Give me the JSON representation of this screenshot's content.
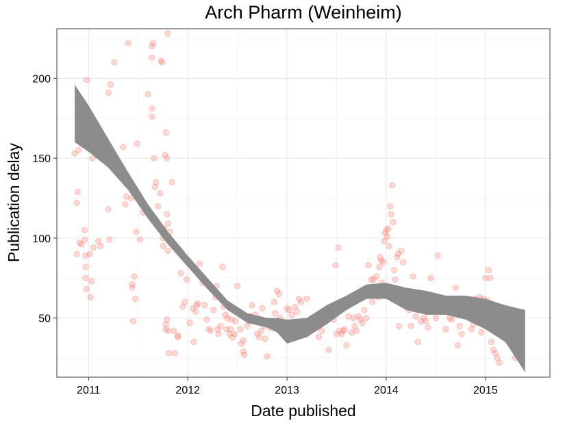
{
  "chart_data": {
    "type": "scatter",
    "title": "Arch Pharm (Weinheim)",
    "xlabel": "Date published",
    "ylabel": "Publication delay",
    "xlim": [
      2010.68,
      2015.65
    ],
    "ylim": [
      13,
      231
    ],
    "x_ticks": [
      2011,
      2012,
      2013,
      2014,
      2015
    ],
    "x_tick_labels": [
      "2011",
      "2012",
      "2013",
      "2014",
      "2015"
    ],
    "y_ticks": [
      50,
      100,
      150,
      200
    ],
    "y_tick_labels": [
      "50",
      "100",
      "150",
      "200"
    ],
    "grid": true,
    "point_color": "#f8766d",
    "band_color": "#8c8c8c",
    "points": [
      [
        2010.86,
        153
      ],
      [
        2010.88,
        122
      ],
      [
        2010.89,
        129
      ],
      [
        2010.9,
        155
      ],
      [
        2010.91,
        97
      ],
      [
        2010.93,
        96
      ],
      [
        2010.88,
        90
      ],
      [
        2010.96,
        99
      ],
      [
        2010.97,
        89
      ],
      [
        2010.97,
        75
      ],
      [
        2010.98,
        199
      ],
      [
        2010.99,
        168
      ],
      [
        2010.96,
        105
      ],
      [
        2010.97,
        82
      ],
      [
        2010.98,
        68
      ],
      [
        2011.01,
        90
      ],
      [
        2011.03,
        157
      ],
      [
        2011.04,
        150
      ],
      [
        2011.02,
        63
      ],
      [
        2011.03,
        73
      ],
      [
        2011.05,
        94
      ],
      [
        2011.1,
        98
      ],
      [
        2011.11,
        165
      ],
      [
        2011.12,
        95
      ],
      [
        2011.15,
        162
      ],
      [
        2011.2,
        191
      ],
      [
        2011.22,
        196
      ],
      [
        2011.21,
        99
      ],
      [
        2011.2,
        118
      ],
      [
        2011.26,
        210
      ],
      [
        2011.35,
        157
      ],
      [
        2011.37,
        121
      ],
      [
        2011.38,
        126
      ],
      [
        2011.4,
        222
      ],
      [
        2011.38,
        134
      ],
      [
        2011.43,
        125
      ],
      [
        2011.44,
        71
      ],
      [
        2011.44,
        69
      ],
      [
        2011.45,
        48
      ],
      [
        2011.46,
        76
      ],
      [
        2011.47,
        62
      ],
      [
        2011.48,
        104
      ],
      [
        2011.49,
        159
      ],
      [
        2011.52,
        99
      ],
      [
        2011.55,
        116
      ],
      [
        2011.6,
        190
      ],
      [
        2011.64,
        220
      ],
      [
        2011.65,
        222
      ],
      [
        2011.64,
        213
      ],
      [
        2011.64,
        181
      ],
      [
        2011.64,
        176
      ],
      [
        2011.66,
        150
      ],
      [
        2011.67,
        132
      ],
      [
        2011.68,
        135
      ],
      [
        2011.66,
        112
      ],
      [
        2011.7,
        120
      ],
      [
        2011.72,
        128
      ],
      [
        2011.73,
        211
      ],
      [
        2011.74,
        210
      ],
      [
        2011.76,
        106
      ],
      [
        2011.75,
        100
      ],
      [
        2011.75,
        95
      ],
      [
        2011.77,
        152
      ],
      [
        2011.79,
        150
      ],
      [
        2011.78,
        166
      ],
      [
        2011.8,
        228
      ],
      [
        2011.79,
        115
      ],
      [
        2011.8,
        109
      ],
      [
        2011.8,
        92
      ],
      [
        2011.82,
        104
      ],
      [
        2011.78,
        46
      ],
      [
        2011.79,
        49
      ],
      [
        2011.78,
        43
      ],
      [
        2011.8,
        42
      ],
      [
        2011.81,
        28
      ],
      [
        2011.84,
        135
      ],
      [
        2011.87,
        28
      ],
      [
        2011.86,
        42
      ],
      [
        2011.9,
        39
      ],
      [
        2011.9,
        38
      ],
      [
        2011.93,
        78
      ],
      [
        2011.95,
        57
      ],
      [
        2011.97,
        60
      ],
      [
        2011.99,
        74
      ],
      [
        2012.02,
        47
      ],
      [
        2012.05,
        56
      ],
      [
        2012.06,
        35
      ],
      [
        2012.08,
        54
      ],
      [
        2012.09,
        58
      ],
      [
        2012.1,
        59
      ],
      [
        2012.12,
        84
      ],
      [
        2012.15,
        72
      ],
      [
        2012.17,
        58
      ],
      [
        2012.19,
        49
      ],
      [
        2012.21,
        43
      ],
      [
        2012.23,
        42
      ],
      [
        2012.26,
        55
      ],
      [
        2012.28,
        63
      ],
      [
        2012.29,
        70
      ],
      [
        2012.3,
        43
      ],
      [
        2012.31,
        40
      ],
      [
        2012.33,
        45
      ],
      [
        2012.35,
        82
      ],
      [
        2012.36,
        57
      ],
      [
        2012.38,
        52
      ],
      [
        2012.39,
        43
      ],
      [
        2012.4,
        50
      ],
      [
        2012.42,
        40
      ],
      [
        2012.43,
        43
      ],
      [
        2012.44,
        49
      ],
      [
        2012.45,
        38
      ],
      [
        2012.47,
        40
      ],
      [
        2012.48,
        48
      ],
      [
        2012.5,
        70
      ],
      [
        2012.52,
        54
      ],
      [
        2012.53,
        43
      ],
      [
        2012.54,
        34
      ],
      [
        2012.56,
        36
      ],
      [
        2012.56,
        29
      ],
      [
        2012.57,
        27
      ],
      [
        2012.6,
        45
      ],
      [
        2012.61,
        50
      ],
      [
        2012.62,
        48
      ],
      [
        2012.63,
        51
      ],
      [
        2012.65,
        58
      ],
      [
        2012.67,
        49
      ],
      [
        2012.68,
        52
      ],
      [
        2012.7,
        40
      ],
      [
        2012.72,
        38
      ],
      [
        2012.74,
        42
      ],
      [
        2012.75,
        56
      ],
      [
        2012.77,
        45
      ],
      [
        2012.78,
        37
      ],
      [
        2012.8,
        26
      ],
      [
        2012.83,
        44
      ],
      [
        2012.85,
        48
      ],
      [
        2012.87,
        60
      ],
      [
        2012.88,
        53
      ],
      [
        2012.9,
        67
      ],
      [
        2012.92,
        65
      ],
      [
        2012.93,
        50
      ],
      [
        2012.95,
        41
      ],
      [
        2012.98,
        43
      ],
      [
        2013.0,
        56
      ],
      [
        2013.02,
        55
      ],
      [
        2013.05,
        52
      ],
      [
        2013.08,
        57
      ],
      [
        2013.1,
        54
      ],
      [
        2013.12,
        62
      ],
      [
        2013.14,
        60
      ],
      [
        2013.16,
        41
      ],
      [
        2013.18,
        46
      ],
      [
        2013.2,
        62
      ],
      [
        2013.23,
        44
      ],
      [
        2013.25,
        50
      ],
      [
        2013.27,
        46
      ],
      [
        2013.3,
        45
      ],
      [
        2013.32,
        38
      ],
      [
        2013.35,
        42
      ],
      [
        2013.38,
        48
      ],
      [
        2013.4,
        55
      ],
      [
        2013.42,
        30
      ],
      [
        2013.45,
        53
      ],
      [
        2013.47,
        49
      ],
      [
        2013.49,
        83
      ],
      [
        2013.5,
        40
      ],
      [
        2013.52,
        94
      ],
      [
        2013.53,
        42
      ],
      [
        2013.55,
        40
      ],
      [
        2013.57,
        42
      ],
      [
        2013.58,
        43
      ],
      [
        2013.6,
        33
      ],
      [
        2013.62,
        51
      ],
      [
        2013.65,
        41
      ],
      [
        2013.67,
        50
      ],
      [
        2013.68,
        45
      ],
      [
        2013.7,
        42
      ],
      [
        2013.72,
        51
      ],
      [
        2013.74,
        49
      ],
      [
        2013.76,
        47
      ],
      [
        2013.78,
        55
      ],
      [
        2013.8,
        50
      ],
      [
        2013.82,
        83
      ],
      [
        2013.83,
        65
      ],
      [
        2013.85,
        74
      ],
      [
        2013.86,
        60
      ],
      [
        2013.87,
        74
      ],
      [
        2013.88,
        69
      ],
      [
        2013.9,
        76
      ],
      [
        2013.91,
        67
      ],
      [
        2013.92,
        63
      ],
      [
        2013.93,
        82
      ],
      [
        2013.94,
        88
      ],
      [
        2013.95,
        86
      ],
      [
        2013.96,
        72
      ],
      [
        2013.97,
        85
      ],
      [
        2013.98,
        98
      ],
      [
        2013.99,
        103
      ],
      [
        2014.0,
        105
      ],
      [
        2014.01,
        101
      ],
      [
        2014.02,
        106
      ],
      [
        2014.03,
        95
      ],
      [
        2014.04,
        120
      ],
      [
        2014.05,
        115
      ],
      [
        2014.06,
        133
      ],
      [
        2014.07,
        110
      ],
      [
        2014.08,
        80
      ],
      [
        2014.09,
        74
      ],
      [
        2014.1,
        64
      ],
      [
        2014.11,
        88
      ],
      [
        2014.12,
        90
      ],
      [
        2014.13,
        45
      ],
      [
        2014.15,
        92
      ],
      [
        2014.17,
        85
      ],
      [
        2014.19,
        61
      ],
      [
        2014.21,
        62
      ],
      [
        2014.23,
        55
      ],
      [
        2014.25,
        45
      ],
      [
        2014.27,
        76
      ],
      [
        2014.3,
        51
      ],
      [
        2014.32,
        35
      ],
      [
        2014.35,
        48
      ],
      [
        2014.38,
        50
      ],
      [
        2014.4,
        48
      ],
      [
        2014.42,
        44
      ],
      [
        2014.45,
        75
      ],
      [
        2014.48,
        55
      ],
      [
        2014.5,
        50
      ],
      [
        2014.52,
        89
      ],
      [
        2014.55,
        59
      ],
      [
        2014.57,
        60
      ],
      [
        2014.6,
        43
      ],
      [
        2014.62,
        56
      ],
      [
        2014.64,
        50
      ],
      [
        2014.66,
        49
      ],
      [
        2014.68,
        62
      ],
      [
        2014.7,
        69
      ],
      [
        2014.72,
        33
      ],
      [
        2014.74,
        45
      ],
      [
        2014.76,
        40
      ],
      [
        2014.78,
        58
      ],
      [
        2014.8,
        56
      ],
      [
        2014.82,
        62
      ],
      [
        2014.84,
        55
      ],
      [
        2014.86,
        43
      ],
      [
        2014.88,
        46
      ],
      [
        2014.9,
        62
      ],
      [
        2014.92,
        58
      ],
      [
        2014.94,
        63
      ],
      [
        2014.96,
        41
      ],
      [
        2014.98,
        62
      ],
      [
        2015.0,
        75
      ],
      [
        2015.02,
        61
      ],
      [
        2015.03,
        80
      ],
      [
        2015.05,
        75
      ],
      [
        2015.06,
        35
      ],
      [
        2015.08,
        30
      ],
      [
        2015.1,
        28
      ],
      [
        2015.12,
        25
      ],
      [
        2015.14,
        22
      ],
      [
        2015.15,
        41
      ],
      [
        2015.16,
        50
      ],
      [
        2015.18,
        45
      ],
      [
        2015.2,
        40
      ],
      [
        2015.22,
        38
      ],
      [
        2015.24,
        42
      ],
      [
        2015.26,
        49
      ],
      [
        2015.28,
        34
      ],
      [
        2015.3,
        25
      ],
      [
        2015.32,
        42
      ],
      [
        2015.35,
        45
      ]
    ],
    "smooth_band": [
      [
        2010.86,
        160,
        196
      ],
      [
        2011.0,
        154,
        183
      ],
      [
        2011.2,
        144,
        162
      ],
      [
        2011.4,
        130,
        141
      ],
      [
        2011.6,
        112,
        121
      ],
      [
        2011.8,
        96,
        104
      ],
      [
        2012.0,
        82,
        89
      ],
      [
        2012.2,
        68,
        75
      ],
      [
        2012.4,
        55,
        61
      ],
      [
        2012.6,
        47,
        53
      ],
      [
        2012.8,
        44,
        50
      ],
      [
        2012.9,
        41,
        50
      ],
      [
        2013.0,
        34,
        49
      ],
      [
        2013.2,
        38,
        50
      ],
      [
        2013.4,
        46,
        58
      ],
      [
        2013.6,
        55,
        64
      ],
      [
        2013.8,
        62,
        71
      ],
      [
        2014.0,
        62,
        72
      ],
      [
        2014.2,
        55,
        69
      ],
      [
        2014.4,
        52,
        67
      ],
      [
        2014.6,
        52,
        64
      ],
      [
        2014.8,
        49,
        64
      ],
      [
        2015.0,
        43,
        62
      ],
      [
        2015.2,
        35,
        58
      ],
      [
        2015.4,
        16,
        55
      ]
    ]
  }
}
